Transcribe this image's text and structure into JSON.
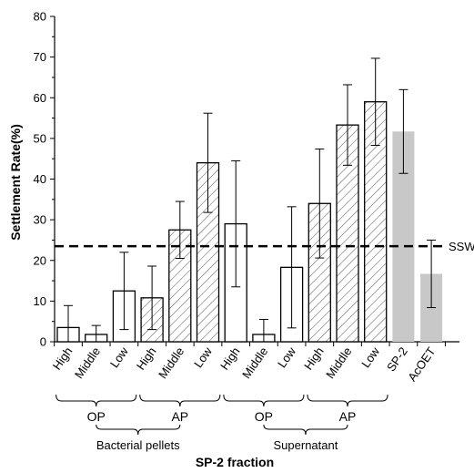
{
  "chart_data": {
    "type": "bar",
    "xlabel": "SP-2 fraction",
    "ylabel": "Settlement Rate(%)",
    "ylim": [
      0,
      80
    ],
    "yticks": [
      0,
      10,
      20,
      30,
      40,
      50,
      60,
      70,
      80
    ],
    "categories": [
      "High",
      "Middle",
      "Low",
      "High",
      "Middle",
      "Low",
      "High",
      "Middle",
      "Low",
      "High",
      "Middle",
      "Low",
      "SP-2",
      "AcOET"
    ],
    "values": [
      3.5,
      1.8,
      12.5,
      10.8,
      27.5,
      44.0,
      29.0,
      1.8,
      18.3,
      34.0,
      53.3,
      59.0,
      51.7,
      16.7
    ],
    "errors": [
      5.4,
      2.2,
      9.5,
      7.8,
      7.0,
      12.2,
      15.5,
      3.7,
      14.9,
      13.4,
      9.9,
      10.7,
      10.3,
      8.3
    ],
    "fill_style": [
      "open",
      "open",
      "open",
      "hatched",
      "hatched",
      "hatched",
      "open",
      "open",
      "open",
      "hatched",
      "hatched",
      "hatched",
      "gray",
      "gray"
    ],
    "reference_line": {
      "value": 23.5,
      "label": "SSW"
    },
    "groups_level1": [
      {
        "label": "OP",
        "start": 0,
        "end": 2
      },
      {
        "label": "AP",
        "start": 3,
        "end": 5
      },
      {
        "label": "OP",
        "start": 6,
        "end": 8
      },
      {
        "label": "AP",
        "start": 9,
        "end": 11
      }
    ],
    "groups_level2": [
      {
        "label": "Bacterial pellets",
        "start": 0,
        "end": 5
      },
      {
        "label": "Supernatant",
        "start": 6,
        "end": 11
      }
    ],
    "grid": false,
    "colors": {
      "bar_stroke": "#000000",
      "gray_fill": "#c8c8c8",
      "hatch": "#555555"
    }
  }
}
